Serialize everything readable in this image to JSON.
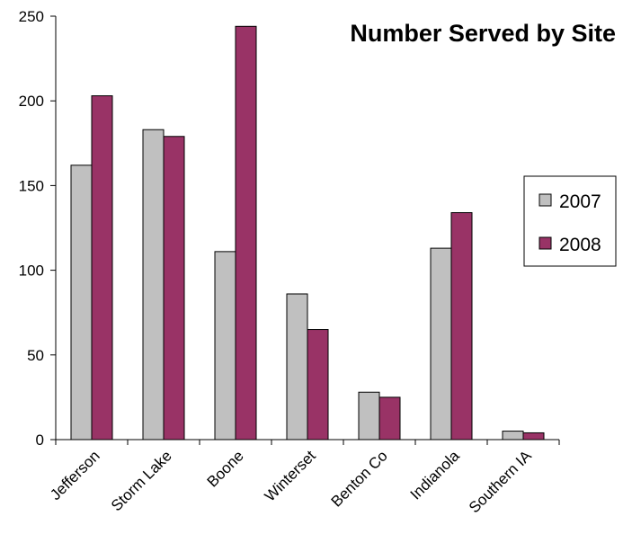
{
  "chart_data": {
    "type": "bar",
    "title": "Number Served by Site",
    "xlabel": "",
    "ylabel": "",
    "categories": [
      "Jefferson",
      "Storm Lake",
      "Boone",
      "Winterset",
      "Benton Co",
      "Indianola",
      "Southern IA"
    ],
    "series": [
      {
        "name": "2007",
        "color": "#c0c0c0",
        "values": [
          162,
          183,
          111,
          86,
          28,
          113,
          5
        ]
      },
      {
        "name": "2008",
        "color": "#993366",
        "values": [
          203,
          179,
          244,
          65,
          25,
          134,
          4
        ]
      }
    ],
    "ylim": [
      0,
      250
    ],
    "yticks": [
      0,
      50,
      100,
      150,
      200,
      250
    ],
    "grid": false,
    "legend_position": "right"
  }
}
